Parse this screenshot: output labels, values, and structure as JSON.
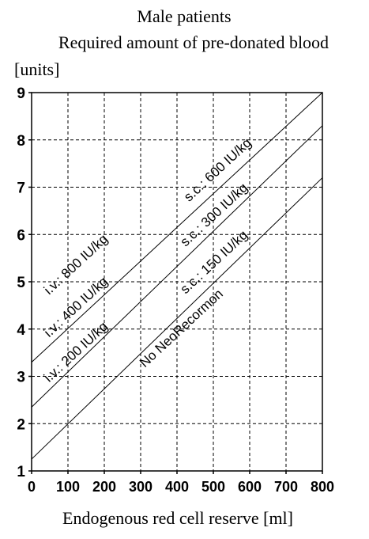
{
  "chart_data": {
    "type": "line",
    "title": "Male patients",
    "subtitle": "Required amount of pre-donated blood",
    "ylabel": "[units]",
    "xlabel": "Endogenous red cell reserve [ml]",
    "xlim": [
      0,
      800
    ],
    "ylim": [
      1,
      9
    ],
    "x_ticks": [
      "0",
      "100",
      "200",
      "300",
      "400",
      "500",
      "600",
      "700",
      "800"
    ],
    "y_ticks": [
      "1",
      "2",
      "3",
      "4",
      "5",
      "6",
      "7",
      "8",
      "9"
    ],
    "grid": true,
    "series": [
      {
        "x": [
          0,
          800
        ],
        "y": [
          3.3,
          9.0
        ]
      },
      {
        "x": [
          0,
          800
        ],
        "y": [
          2.35,
          8.3
        ]
      },
      {
        "x": [
          0,
          800
        ],
        "y": [
          1.25,
          7.2
        ]
      }
    ],
    "annotations": [
      {
        "text": "i.v.: 800 IU/kg",
        "x": 130,
        "y": 5.3
      },
      {
        "text": "i.v.: 400 IU/kg",
        "x": 130,
        "y": 4.4
      },
      {
        "text": "i.v.: 200 IU/kg",
        "x": 130,
        "y": 3.45
      },
      {
        "text": "s.c.: 600 IU/kg",
        "x": 520,
        "y": 7.3
      },
      {
        "text": "s.c.: 300 IU/kg",
        "x": 510,
        "y": 6.35
      },
      {
        "text": "s.c.: 150 IU/kg",
        "x": 510,
        "y": 5.35
      },
      {
        "text": "No NeoRecormon",
        "x": 420,
        "y": 3.95
      }
    ]
  }
}
